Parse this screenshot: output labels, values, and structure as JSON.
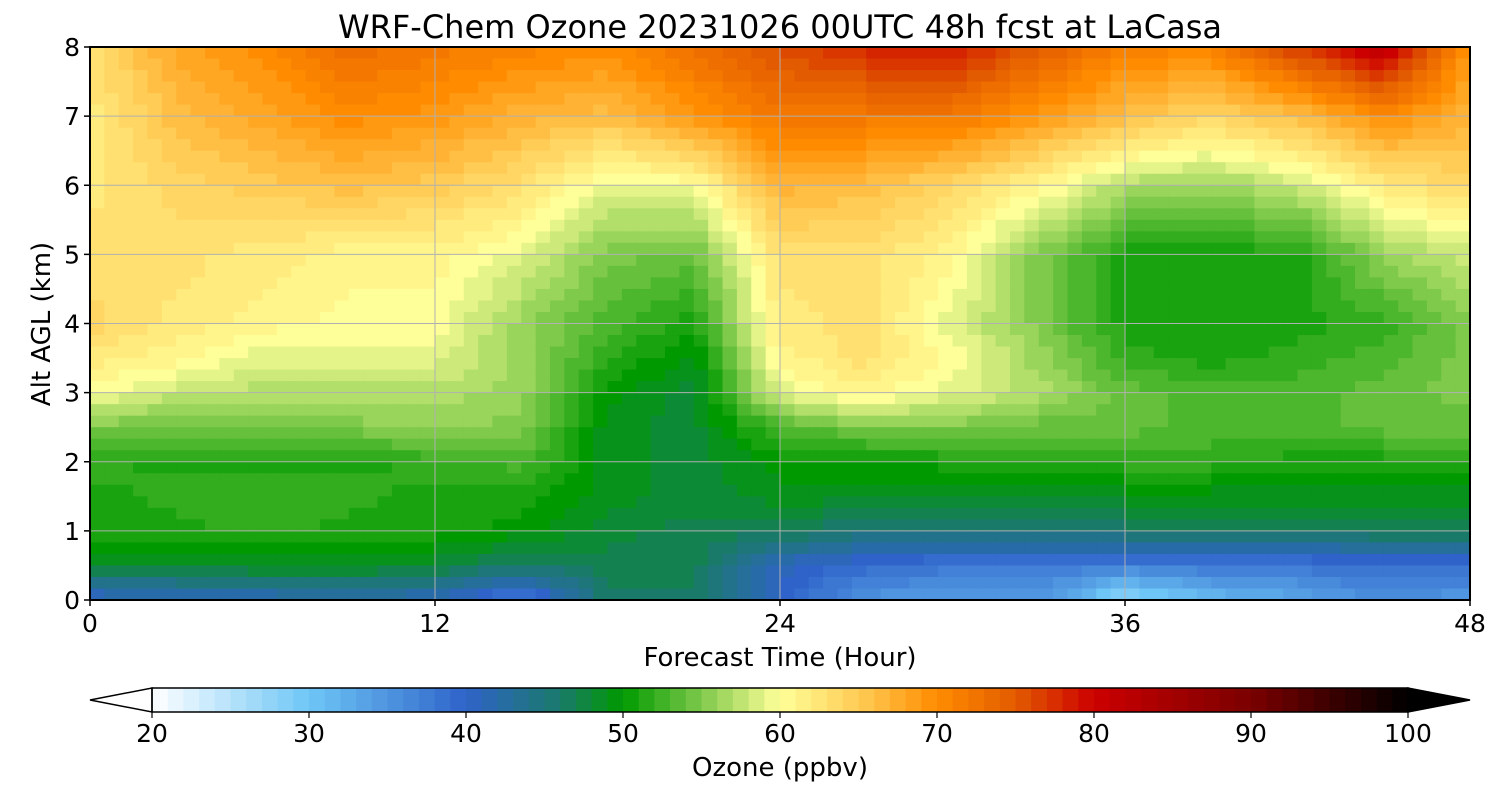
{
  "chart_data": {
    "type": "heatmap",
    "title": "WRF-Chem Ozone  20231026 00UTC 48h fcst at LaCasa",
    "xlabel": "Forecast Time (Hour)",
    "ylabel": "Alt AGL (km)",
    "xlim": [
      0,
      48
    ],
    "ylim": [
      0,
      8
    ],
    "x_ticks": [
      0,
      12,
      24,
      36,
      48
    ],
    "y_ticks": [
      0,
      1,
      2,
      3,
      4,
      5,
      6,
      7,
      8
    ],
    "grid": true,
    "colorbar": {
      "label": "Ozone  (ppbv)",
      "min": 20,
      "max": 100,
      "ticks": [
        20,
        30,
        40,
        50,
        60,
        70,
        80,
        90,
        100
      ],
      "extend": "both",
      "stops": [
        {
          "v": 20,
          "color": "#ffffff"
        },
        {
          "v": 30,
          "color": "#6ec6f6"
        },
        {
          "v": 40,
          "color": "#2f63c9"
        },
        {
          "v": 46,
          "color": "#1a7a6a"
        },
        {
          "v": 50,
          "color": "#009a00"
        },
        {
          "v": 55,
          "color": "#7fc94b"
        },
        {
          "v": 60,
          "color": "#ffff99"
        },
        {
          "v": 65,
          "color": "#ffcc55"
        },
        {
          "v": 70,
          "color": "#ff8c00"
        },
        {
          "v": 75,
          "color": "#e35b00"
        },
        {
          "v": 80,
          "color": "#cc0000"
        },
        {
          "v": 90,
          "color": "#7a0000"
        },
        {
          "v": 100,
          "color": "#000000"
        }
      ]
    },
    "x": [
      0,
      3,
      6,
      9,
      12,
      15,
      18,
      21,
      24,
      27,
      30,
      33,
      36,
      39,
      42,
      45,
      48
    ],
    "y": [
      0,
      0.5,
      1,
      1.5,
      2,
      2.5,
      3,
      3.5,
      4,
      5,
      6,
      7,
      8
    ],
    "z": [
      [
        40,
        41,
        41,
        42,
        41,
        37,
        46,
        46,
        40,
        35,
        34,
        35,
        27,
        31,
        33,
        36,
        34
      ],
      [
        48,
        48,
        49,
        49,
        48,
        46,
        47,
        47,
        41,
        39,
        38,
        38,
        37,
        38,
        38,
        39,
        39
      ],
      [
        51,
        51,
        52,
        51,
        51,
        50,
        48,
        47,
        47,
        45,
        45,
        45,
        46,
        47,
        46,
        47,
        47
      ],
      [
        51,
        52,
        52,
        52,
        51,
        51,
        49,
        48,
        49,
        49,
        49,
        49,
        49,
        49,
        49,
        49,
        49
      ],
      [
        52,
        51,
        51,
        51,
        52,
        53,
        49,
        48,
        50,
        50,
        51,
        51,
        52,
        52,
        51,
        51,
        51
      ],
      [
        55,
        54,
        54,
        55,
        56,
        55,
        49,
        48,
        53,
        55,
        55,
        54,
        54,
        53,
        53,
        54,
        54
      ],
      [
        60,
        58,
        57,
        57,
        57,
        56,
        50,
        48,
        59,
        61,
        59,
        57,
        54,
        53,
        53,
        54,
        55
      ],
      [
        62,
        61,
        59,
        59,
        59,
        56,
        52,
        49,
        61,
        63,
        60,
        56,
        52,
        51,
        52,
        53,
        55
      ],
      [
        64,
        62,
        61,
        60,
        60,
        56,
        53,
        51,
        62,
        63,
        59,
        55,
        51,
        51,
        51,
        52,
        55
      ],
      [
        63,
        63,
        62,
        61,
        61,
        59,
        55,
        54,
        63,
        63,
        61,
        55,
        51,
        51,
        51,
        56,
        58
      ],
      [
        62,
        64,
        65,
        66,
        65,
        63,
        59,
        60,
        67,
        66,
        64,
        61,
        57,
        56,
        58,
        62,
        64
      ],
      [
        62,
        66,
        68,
        70,
        69,
        67,
        66,
        69,
        72,
        72,
        72,
        69,
        66,
        64,
        66,
        70,
        67
      ],
      [
        63,
        68,
        70,
        73,
        72,
        71,
        70,
        73,
        76,
        78,
        79,
        75,
        71,
        71,
        77,
        82,
        69
      ]
    ]
  }
}
